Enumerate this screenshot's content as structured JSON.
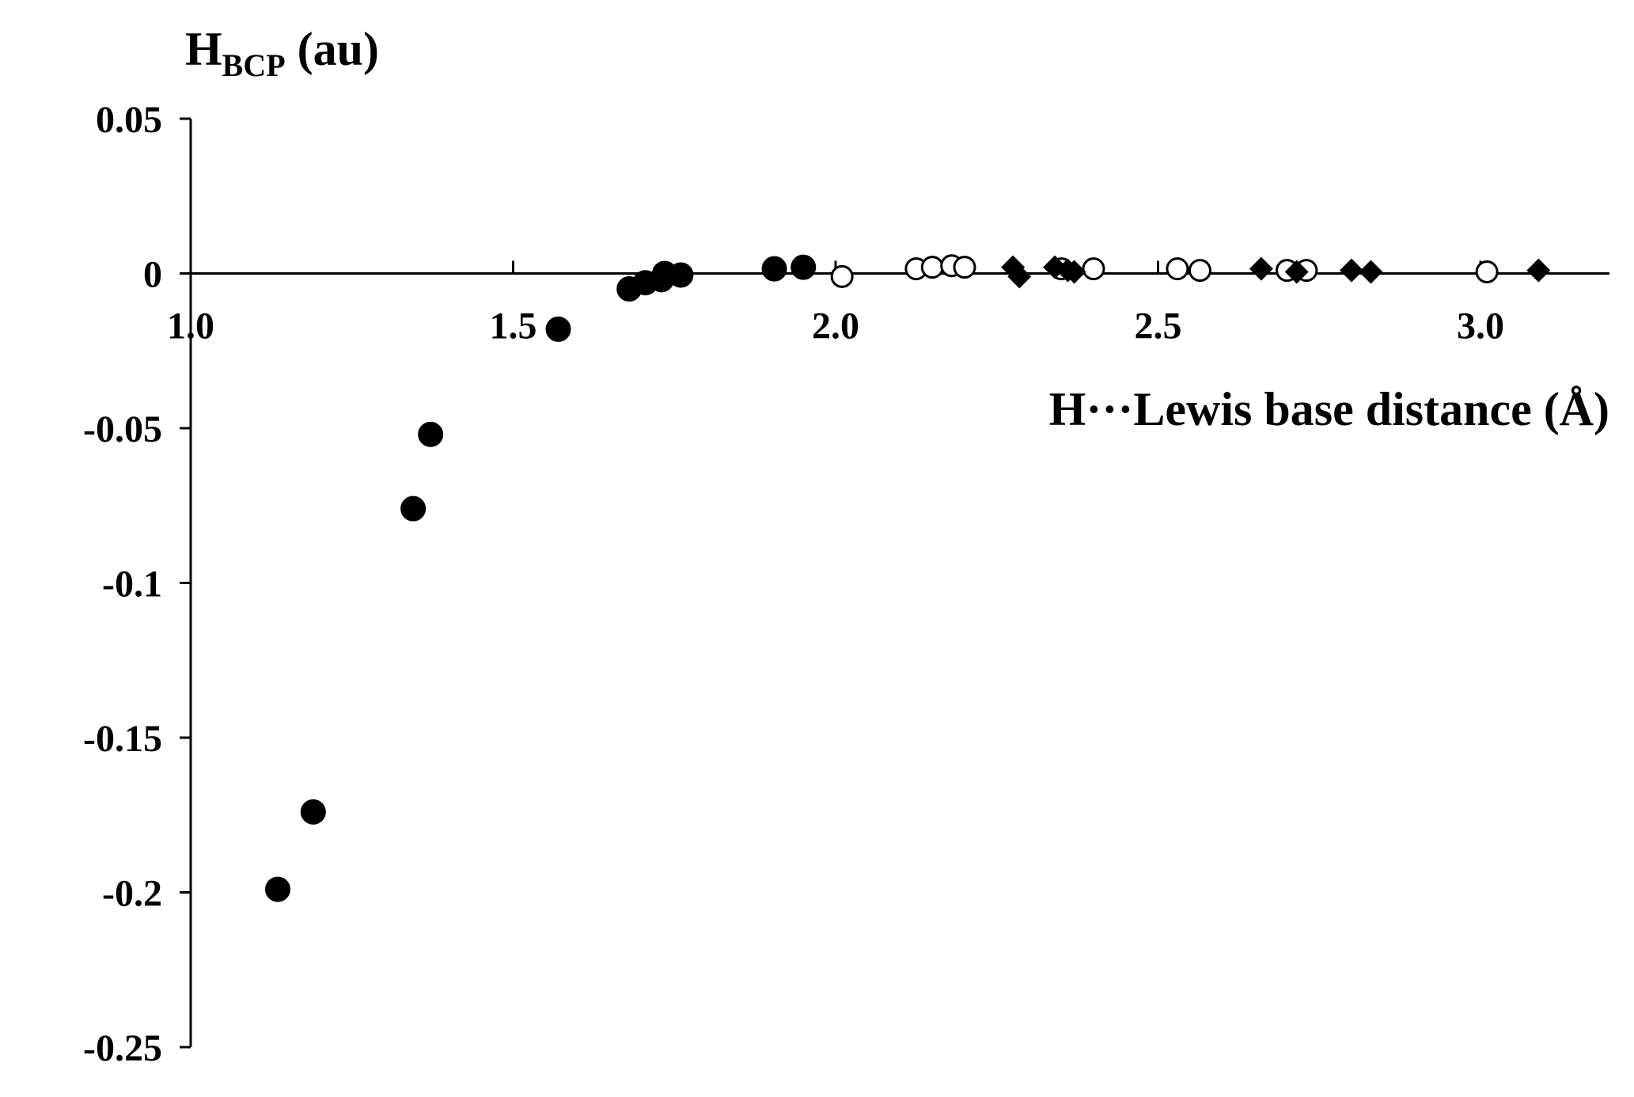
{
  "chart_data": {
    "type": "scatter",
    "ylabel": {
      "main": "H",
      "sub": "BCP",
      "unit": " (au)"
    },
    "xlabel": "H···Lewis base distance (Å)",
    "xlim": [
      1.0,
      3.2
    ],
    "ylim": [
      -0.25,
      0.05
    ],
    "x_ticks": [
      1.0,
      1.5,
      2.0,
      2.5,
      3.0
    ],
    "x_tick_labels": [
      "1.0",
      "1.5",
      "2.0",
      "2.5",
      "3.0"
    ],
    "y_ticks": [
      0.05,
      0,
      -0.05,
      -0.1,
      -0.15,
      -0.2,
      -0.25
    ],
    "y_tick_labels": [
      "0.05",
      "0",
      "-0.05",
      "-0.1",
      "-0.15",
      "-0.2",
      "-0.25"
    ],
    "grid": false,
    "legend": false,
    "series": [
      {
        "marker": "filled-circle",
        "color": "#000000",
        "points": [
          [
            1.135,
            -0.199
          ],
          [
            1.19,
            -0.174
          ],
          [
            1.345,
            -0.076
          ],
          [
            1.372,
            -0.052
          ],
          [
            1.57,
            -0.018
          ],
          [
            1.68,
            -0.005
          ],
          [
            1.705,
            -0.003
          ],
          [
            1.73,
            -0.002
          ],
          [
            1.735,
            0.0
          ],
          [
            1.76,
            -0.0005
          ],
          [
            1.905,
            0.0015
          ],
          [
            1.95,
            0.002
          ]
        ]
      },
      {
        "marker": "open-circle",
        "color": "#000000",
        "points": [
          [
            2.01,
            -0.001
          ],
          [
            2.125,
            0.0015
          ],
          [
            2.15,
            0.002
          ],
          [
            2.18,
            0.0025
          ],
          [
            2.2,
            0.002
          ],
          [
            2.35,
            0.0015
          ],
          [
            2.4,
            0.0015
          ],
          [
            2.53,
            0.0015
          ],
          [
            2.565,
            0.001
          ],
          [
            2.7,
            0.001
          ],
          [
            2.73,
            0.001
          ],
          [
            3.01,
            0.0005
          ]
        ]
      },
      {
        "marker": "filled-diamond",
        "color": "#000000",
        "points": [
          [
            2.275,
            0.002
          ],
          [
            2.285,
            -0.001
          ],
          [
            2.34,
            0.002
          ],
          [
            2.36,
            0.001
          ],
          [
            2.37,
            0.0005
          ],
          [
            2.66,
            0.0015
          ],
          [
            2.715,
            0.0005
          ],
          [
            2.8,
            0.001
          ],
          [
            2.83,
            0.0005
          ],
          [
            3.09,
            0.001
          ]
        ]
      }
    ]
  }
}
